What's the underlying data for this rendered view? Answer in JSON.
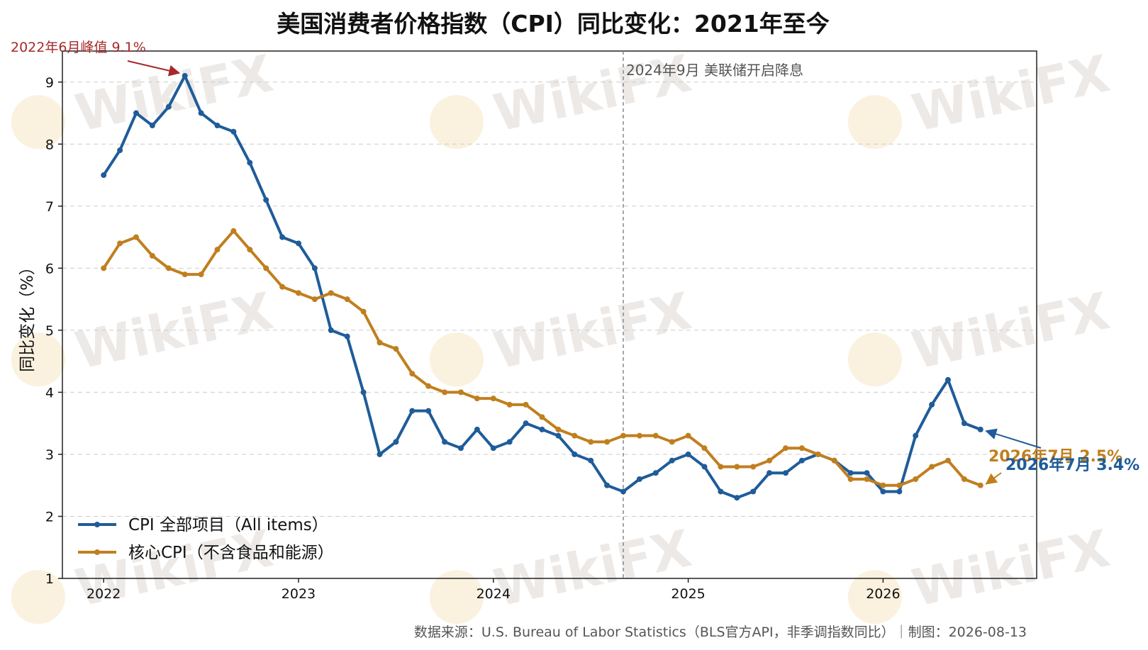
{
  "chart_data": {
    "type": "line",
    "title": "美国消费者价格指数（CPI）同比变化：2021年至今",
    "ylabel": "同比变化（%）",
    "xlabel": "",
    "ylim": [
      1,
      9.5
    ],
    "xlim": [
      "2021-10-15",
      "2026-10-15"
    ],
    "yticks": [
      1,
      2,
      3,
      4,
      5,
      6,
      7,
      8,
      9
    ],
    "xticks": [
      "2022",
      "2023",
      "2024",
      "2025",
      "2026"
    ],
    "grid": "y-dashed",
    "legend_position": "lower-left",
    "x": [
      "2022-01",
      "2022-02",
      "2022-03",
      "2022-04",
      "2022-05",
      "2022-06",
      "2022-07",
      "2022-08",
      "2022-09",
      "2022-10",
      "2022-11",
      "2022-12",
      "2023-01",
      "2023-02",
      "2023-03",
      "2023-04",
      "2023-05",
      "2023-06",
      "2023-07",
      "2023-08",
      "2023-09",
      "2023-10",
      "2023-11",
      "2023-12",
      "2024-01",
      "2024-02",
      "2024-03",
      "2024-04",
      "2024-05",
      "2024-06",
      "2024-07",
      "2024-08",
      "2024-09",
      "2024-10",
      "2024-11",
      "2024-12",
      "2025-01",
      "2025-02",
      "2025-03",
      "2025-04",
      "2025-05",
      "2025-06",
      "2025-07",
      "2025-08",
      "2025-09",
      "2025-10",
      "2025-11",
      "2025-12",
      "2026-01",
      "2026-02",
      "2026-03",
      "2026-04",
      "2026-05",
      "2026-06",
      "2026-07"
    ],
    "series": [
      {
        "name": "CPI 全部项目（All items）",
        "color": "#1F5C99",
        "values": [
          7.5,
          7.9,
          8.5,
          8.3,
          8.6,
          9.1,
          8.5,
          8.3,
          8.2,
          7.7,
          7.1,
          6.5,
          6.4,
          6.0,
          5.0,
          4.9,
          4.0,
          3.0,
          3.2,
          3.7,
          3.7,
          3.2,
          3.1,
          3.4,
          3.1,
          3.2,
          3.5,
          3.4,
          3.3,
          3.0,
          2.9,
          2.5,
          2.4,
          2.6,
          2.7,
          2.9,
          3.0,
          2.8,
          2.4,
          2.3,
          2.4,
          2.7,
          2.7,
          2.9,
          3.0,
          2.9,
          2.7,
          2.7,
          2.4,
          2.4,
          3.3,
          3.8,
          4.2,
          3.5,
          3.4
        ]
      },
      {
        "name": "核心CPI（不含食品和能源）",
        "color": "#C07F1E",
        "values": [
          6.0,
          6.4,
          6.5,
          6.2,
          6.0,
          5.9,
          5.9,
          6.3,
          6.6,
          6.3,
          6.0,
          5.7,
          5.6,
          5.5,
          5.6,
          5.5,
          5.3,
          4.8,
          4.7,
          4.3,
          4.1,
          4.0,
          4.0,
          3.9,
          3.9,
          3.8,
          3.8,
          3.6,
          3.4,
          3.3,
          3.2,
          3.2,
          3.3,
          3.3,
          3.3,
          3.2,
          3.3,
          3.1,
          2.8,
          2.8,
          2.8,
          2.9,
          3.1,
          3.1,
          3.0,
          2.9,
          2.6,
          2.6,
          2.5,
          2.5,
          2.6,
          2.8,
          2.9,
          2.6,
          2.5
        ]
      }
    ],
    "annotations": {
      "peak": {
        "text": "2022年6月峰值 9.1%",
        "x": "2022-06",
        "y": 9.1
      },
      "fed": {
        "text": "2024年9月 美联储开启降息",
        "x": "2024-09"
      },
      "cpi_end": {
        "text": "2026年7月 3.4%",
        "x": "2026-07",
        "y": 3.4
      },
      "core_end": {
        "text": "2026年7月 2.5%",
        "x": "2026-07",
        "y": 2.5
      }
    }
  },
  "watermark": {
    "text": "WikiFX"
  },
  "footer": {
    "source": "数据来源：U.S. Bureau of Labor Statistics（BLS官方API，非季调指数同比）｜制图：2026-08-13"
  }
}
